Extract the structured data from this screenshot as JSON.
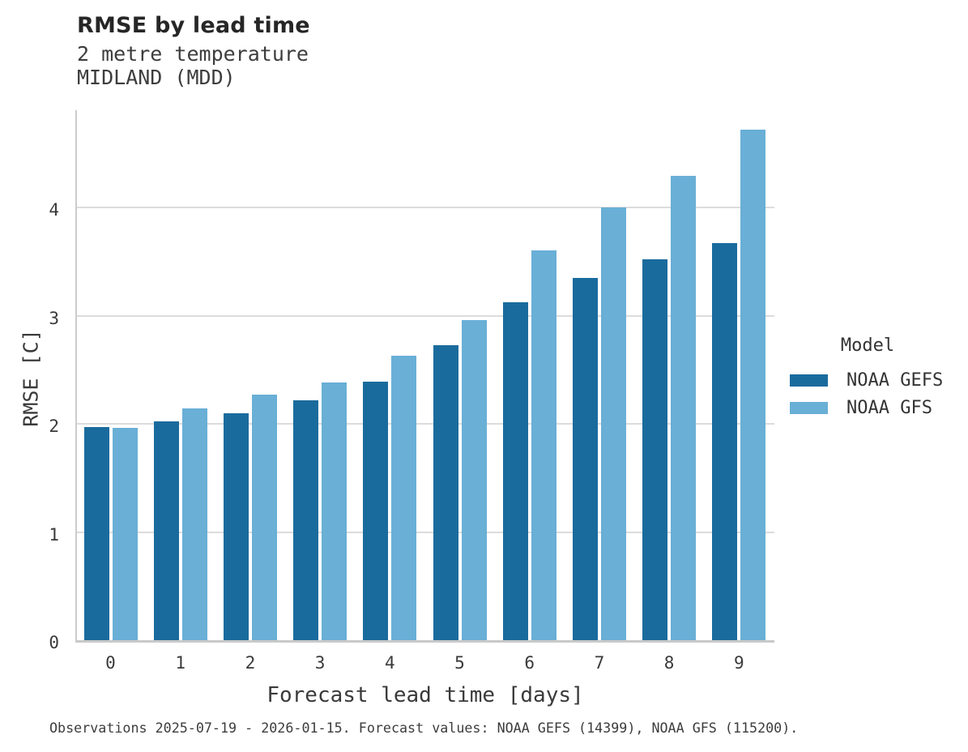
{
  "header": {
    "title": "RMSE by lead time",
    "subtitle_variable": "2 metre temperature",
    "subtitle_station": "MIDLAND (MDD)"
  },
  "chart_data": {
    "type": "bar",
    "title": "RMSE by lead time",
    "subtitle": [
      "2 metre temperature",
      "MIDLAND (MDD)"
    ],
    "categories": [
      "0",
      "1",
      "2",
      "3",
      "4",
      "5",
      "6",
      "7",
      "8",
      "9"
    ],
    "series": [
      {
        "name": "NOAA GEFS",
        "color": "#1A6B9D",
        "values": [
          1.97,
          2.02,
          2.1,
          2.22,
          2.39,
          2.73,
          3.12,
          3.35,
          3.52,
          3.67
        ]
      },
      {
        "name": "NOAA GFS",
        "color": "#69AFD6",
        "values": [
          1.96,
          2.14,
          2.27,
          2.38,
          2.63,
          2.96,
          3.6,
          4.0,
          4.29,
          4.72
        ]
      }
    ],
    "xlabel": "Forecast lead time [days]",
    "ylabel": "RMSE [C]",
    "ylim": [
      0,
      4.92
    ],
    "yticks": [
      0,
      1,
      2,
      3,
      4
    ],
    "grid": "horizontal-only",
    "legend_position": "right-middle"
  },
  "legend": {
    "title": "Model",
    "items": [
      {
        "label": "NOAA GEFS",
        "color": "#1A6B9D"
      },
      {
        "label": "NOAA GFS",
        "color": "#69AFD6"
      }
    ]
  },
  "footer": {
    "note": "Observations 2025-07-19 - 2026-01-15. Forecast values: NOAA GEFS (14399), NOAA GFS (115200)."
  },
  "colors": {
    "background": "#ffffff",
    "gridline": "#dcdcdc",
    "axis_spine": "#c9c9c9",
    "title_text": "#262626",
    "body_text": "#3a3a3a",
    "series_dark": "#1A6B9D",
    "series_light": "#69AFD6"
  }
}
